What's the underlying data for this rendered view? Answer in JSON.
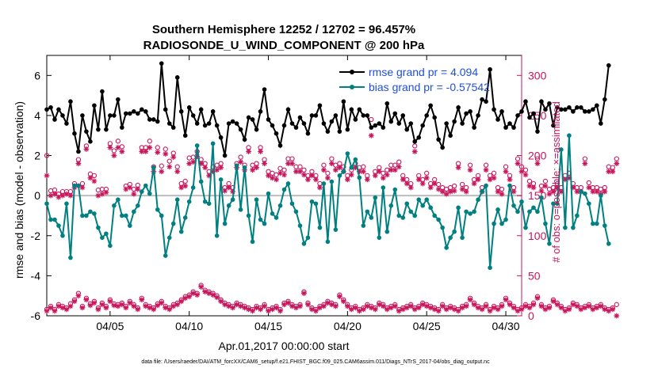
{
  "chart_data": {
    "type": "line",
    "title": "Southern Hemisphere 12252 / 12702 = 96.457%",
    "subtitle": "RADIOSONDE_U_WIND_COMPONENT @ 200 hPa",
    "xlabel": "Apr.01,2017 00:00:00 start",
    "ylabel": "rmse and bias (model - observation)",
    "ylabel_right": "# of obs: o=possible; ×=assimilated",
    "footer": "data file: /Users/raeder/DAI/ATM_forcXX/CAM6_setup/f.e21.FHIST_BGC.f09_025.CAM6assim.011/Diags_NTrS_2017-04/obs_diag_output.nc",
    "xlim": [
      1,
      31
    ],
    "ylim": [
      -6,
      7
    ],
    "ylim_right": [
      0,
      325
    ],
    "x_ticks": [
      5,
      10,
      15,
      20,
      25,
      30
    ],
    "x_tick_labels": [
      "04/05",
      "04/10",
      "04/15",
      "04/20",
      "04/25",
      "04/30"
    ],
    "y_ticks": [
      -6,
      -4,
      -2,
      0,
      2,
      4,
      6
    ],
    "y_tick_labels": [
      "-6",
      "-4",
      "-2",
      "0",
      "2",
      "4",
      "6"
    ],
    "y_ticks_right": [
      0,
      50,
      100,
      150,
      200,
      250,
      300
    ],
    "y_tick_labels_right": [
      "0",
      "50",
      "100",
      "150",
      "200",
      "250",
      "300"
    ],
    "x_start": 1.0,
    "x_step": 0.25,
    "series": [
      {
        "name": "rmse",
        "legend": "rmse grand pr = 4.094",
        "color": "#000000",
        "values": [
          4.3,
          4.4,
          3.8,
          4.3,
          4.0,
          3.6,
          4.7,
          3.1,
          2.2,
          4.0,
          3.2,
          2.7,
          4.5,
          3.3,
          5.2,
          3.3,
          4.0,
          4.0,
          4.8,
          3.4,
          4.1,
          4.1,
          4.2,
          4.1,
          4.3,
          4.2,
          3.8,
          3.8,
          3.7,
          6.6,
          4.3,
          3.6,
          3.4,
          5.9,
          4.2,
          3.0,
          4.4,
          4.0,
          3.6,
          4.3,
          3.5,
          3.6,
          4.2,
          3.5,
          2.9,
          2.0,
          3.6,
          3.7,
          3.6,
          3.3,
          2.8,
          3.9,
          3.8,
          3.3,
          4.2,
          5.3,
          3.8,
          3.5,
          3.1,
          2.5,
          3.5,
          4.3,
          3.6,
          3.4,
          3.9,
          3.6,
          3.1,
          4.0,
          4.0,
          4.5,
          3.6,
          3.2,
          3.7,
          4.0,
          3.2,
          4.7,
          3.3,
          4.3,
          3.8,
          4.3,
          4.0,
          4.0,
          3.4,
          3.5,
          3.6,
          3.4,
          4.6,
          3.7,
          4.1,
          3.6,
          4.0,
          3.3,
          3.6,
          2.7,
          2.9,
          3.5,
          4.0,
          4.5,
          3.9,
          2.8,
          2.4,
          3.6,
          3.0,
          3.7,
          4.4,
          3.6,
          4.1,
          4.2,
          3.4,
          4.0,
          4.8,
          4.7,
          6.3,
          4.3,
          3.8,
          4.2,
          3.4,
          3.6,
          3.4,
          4.0,
          4.2,
          4.7,
          3.9,
          4.1,
          3.2,
          4.7,
          4.3,
          4.6,
          3.5,
          4.4,
          4.3,
          4.3,
          4.4,
          4.2,
          4.4,
          4.4,
          4.2,
          4.2,
          4.3,
          4.5,
          3.6,
          4.8,
          6.5
        ]
      },
      {
        "name": "bias",
        "legend": "bias grand pr = -0.57542",
        "color": "#008080",
        "values": [
          -0.4,
          -1.2,
          -1.2,
          -1.5,
          -2.0,
          -0.4,
          -3.1,
          0.5,
          0.5,
          -1.0,
          -1.0,
          -0.8,
          -0.9,
          -1.6,
          -2.1,
          -1.9,
          -2.5,
          -0.5,
          -0.2,
          -1.0,
          -1.0,
          -1.5,
          -0.8,
          -0.5,
          0.2,
          0.5,
          0.1,
          1.4,
          -0.7,
          -1.0,
          -3.0,
          -2.1,
          -1.4,
          -0.2,
          -1.8,
          -1.1,
          -0.3,
          0.4,
          2.5,
          0.7,
          -0.3,
          -0.4,
          2.6,
          -2.0,
          0.8,
          -1.4,
          -0.5,
          -0.2,
          1.5,
          -0.7,
          1.4,
          -1.0,
          -2.3,
          -0.2,
          -1.2,
          -1.4,
          0.1,
          -0.9,
          -1.1,
          -0.5,
          0.3,
          0.6,
          -0.4,
          -0.8,
          -1.5,
          -2.4,
          -2.1,
          -0.3,
          -0.4,
          -1.6,
          0.6,
          -2.3,
          0.7,
          -1.7,
          1.0,
          1.2,
          2.1,
          1.4,
          1.8,
          0.9,
          -1.5,
          -0.8,
          -1.1,
          -0.1,
          -2.1,
          0.4,
          -1.8,
          -0.5,
          0.3,
          -1.0,
          -1.1,
          -0.4,
          -0.8,
          -1.0,
          -0.2,
          -0.5,
          -0.2,
          -0.6,
          -1.0,
          -1.2,
          -1.6,
          -2.6,
          -2.1,
          -1.8,
          -0.6,
          -2.1,
          -0.8,
          -0.9,
          -0.8,
          -0.2,
          0.2,
          0.5,
          -3.6,
          -1.4,
          -0.7,
          -1.4,
          -1.2,
          0.5,
          -0.5,
          -0.8,
          -0.3,
          -1.6,
          -0.8,
          -0.6,
          -0.8,
          -0.1,
          -1.4,
          -2.4,
          -0.4,
          -0.4,
          2.3,
          -1.6,
          3.0,
          -1.6,
          -1.0,
          0.2,
          0.1,
          -0.4,
          -1.4,
          -1.4,
          0.0,
          -1.5,
          -2.4
        ]
      }
    ],
    "obs_possible": [
      200,
      156,
      157,
      152,
      155,
      155,
      155,
      165,
      195,
      165,
      212,
      177,
      175,
      157,
      158,
      158,
      215,
      206,
      218,
      211,
      162,
      164,
      158,
      163,
      210,
      210,
      218,
      186,
      210,
      187,
      208,
      193,
      203,
      186,
      165,
      168,
      197,
      198,
      205,
      195,
      190,
      180,
      186,
      188,
      190,
      160,
      165,
      160,
      190,
      198,
      188,
      210,
      188,
      190,
      210,
      195,
      180,
      178,
      176,
      184,
      182,
      196,
      196,
      186,
      186,
      182,
      175,
      180,
      175,
      165,
      188,
      178,
      196,
      188,
      190,
      186,
      175,
      182,
      190,
      185,
      186,
      175,
      245,
      180,
      185,
      178,
      182,
      188,
      188,
      192,
      175,
      170,
      165,
      212,
      175,
      170,
      178,
      165,
      170,
      164,
      160,
      158,
      160,
      162,
      190,
      164,
      160,
      188,
      170,
      175,
      160,
      188,
      175,
      178,
      160,
      158,
      186,
      175,
      160,
      196,
      186,
      182,
      168,
      165,
      196,
      162,
      168,
      158,
      160,
      165,
      160,
      175,
      178,
      165,
      160,
      160,
      196,
      166,
      160,
      160,
      158,
      160,
      186,
      185,
      196
    ],
    "obs_assimilated": [
      175,
      150,
      152,
      148,
      150,
      152,
      150,
      160,
      190,
      160,
      208,
      172,
      168,
      150,
      152,
      154,
      210,
      200,
      210,
      205,
      158,
      160,
      152,
      158,
      205,
      205,
      210,
      180,
      204,
      180,
      202,
      186,
      198,
      180,
      160,
      162,
      190,
      192,
      199,
      190,
      185,
      175,
      180,
      182,
      185,
      156,
      160,
      155,
      185,
      192,
      182,
      205,
      182,
      185,
      205,
      190,
      175,
      172,
      170,
      178,
      176,
      190,
      190,
      180,
      180,
      176,
      170,
      175,
      170,
      160,
      182,
      172,
      190,
      182,
      185,
      180,
      170,
      176,
      185,
      180,
      180,
      170,
      225,
      175,
      180,
      172,
      176,
      182,
      182,
      186,
      170,
      165,
      160,
      205,
      170,
      165,
      172,
      160,
      165,
      158,
      155,
      152,
      155,
      156,
      185,
      158,
      155,
      182,
      165,
      170,
      155,
      182,
      170,
      172,
      155,
      152,
      180,
      170,
      155,
      190,
      180,
      176,
      162,
      160,
      190,
      156,
      162,
      152,
      155,
      160,
      155,
      170,
      172,
      160,
      155,
      155,
      190,
      160,
      155,
      155,
      152,
      155,
      180,
      180,
      190
    ],
    "obs_low_possible": [
      8,
      12,
      8,
      14,
      12,
      10,
      15,
      20,
      28,
      12,
      22,
      15,
      18,
      10,
      16,
      12,
      20,
      15,
      14,
      16,
      12,
      18,
      14,
      10,
      22,
      14,
      12,
      10,
      15,
      18,
      12,
      10,
      14,
      16,
      20,
      24,
      26,
      30,
      28,
      38,
      32,
      30,
      28,
      25,
      20,
      16,
      14,
      12,
      16,
      14,
      12,
      10,
      8,
      12,
      10,
      14,
      8,
      10,
      12,
      8,
      16,
      18,
      14,
      12,
      14,
      30,
      16,
      10,
      8,
      12,
      14,
      18,
      16,
      14,
      26,
      20,
      14,
      10,
      12,
      8,
      10,
      14,
      12,
      10,
      16,
      14,
      10,
      12,
      14,
      8,
      10,
      12,
      14,
      10,
      12,
      16,
      14,
      12,
      10,
      8,
      14,
      10,
      12,
      10,
      8,
      12,
      14,
      22,
      16,
      12,
      10,
      14,
      8,
      12,
      10,
      14,
      22,
      16,
      12,
      8,
      10,
      14,
      12,
      16,
      24,
      14,
      10,
      12,
      20,
      16,
      12,
      8,
      10,
      16,
      14,
      10,
      12,
      14,
      10,
      12,
      14,
      10,
      8,
      10,
      14
    ],
    "obs_low_assimilated": [
      6,
      10,
      6,
      12,
      10,
      8,
      12,
      18,
      25,
      10,
      20,
      13,
      16,
      8,
      14,
      10,
      18,
      13,
      12,
      14,
      10,
      16,
      12,
      8,
      20,
      12,
      10,
      8,
      13,
      16,
      10,
      8,
      12,
      14,
      18,
      22,
      24,
      28,
      26,
      36,
      30,
      28,
      26,
      23,
      18,
      14,
      12,
      10,
      14,
      12,
      10,
      8,
      6,
      10,
      8,
      12,
      6,
      8,
      10,
      6,
      14,
      16,
      12,
      10,
      12,
      28,
      14,
      8,
      6,
      10,
      12,
      16,
      14,
      12,
      24,
      18,
      12,
      8,
      10,
      6,
      8,
      12,
      10,
      8,
      14,
      12,
      8,
      10,
      12,
      6,
      8,
      10,
      12,
      8,
      10,
      14,
      12,
      10,
      8,
      6,
      12,
      8,
      10,
      8,
      6,
      10,
      12,
      20,
      14,
      10,
      8,
      12,
      6,
      10,
      8,
      12,
      20,
      14,
      10,
      6,
      8,
      12,
      10,
      14,
      22,
      12,
      8,
      10,
      18,
      14,
      10,
      6,
      8,
      14,
      12,
      8,
      10,
      12,
      8,
      10,
      12,
      8,
      6,
      8,
      0
    ],
    "zero_line_color": "#bdbdbd",
    "obs_color": "#c8145a",
    "legend_position": "top-right"
  }
}
